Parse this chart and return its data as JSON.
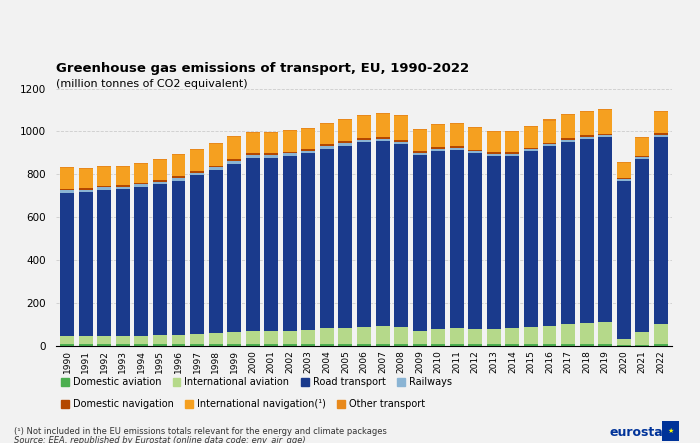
{
  "years": [
    1990,
    1991,
    1992,
    1993,
    1994,
    1995,
    1996,
    1997,
    1998,
    1999,
    2000,
    2001,
    2002,
    2003,
    2004,
    2005,
    2006,
    2007,
    2008,
    2009,
    2010,
    2011,
    2012,
    2013,
    2014,
    2015,
    2016,
    2017,
    2018,
    2019,
    2020,
    2021,
    2022
  ],
  "domestic_aviation": [
    7,
    6,
    6,
    6,
    6,
    6,
    6,
    6,
    7,
    7,
    7,
    7,
    7,
    7,
    7,
    7,
    7,
    7,
    7,
    6,
    6,
    6,
    5,
    5,
    5,
    5,
    5,
    5,
    5,
    5,
    2,
    3,
    5
  ],
  "international_aviation": [
    36,
    37,
    37,
    37,
    40,
    42,
    44,
    47,
    51,
    56,
    62,
    60,
    62,
    66,
    73,
    76,
    80,
    83,
    81,
    63,
    72,
    77,
    74,
    72,
    75,
    82,
    88,
    95,
    100,
    107,
    27,
    60,
    95
  ],
  "road_transport": [
    668,
    672,
    683,
    686,
    695,
    705,
    720,
    742,
    762,
    787,
    808,
    810,
    817,
    824,
    840,
    851,
    862,
    864,
    852,
    821,
    830,
    831,
    819,
    809,
    806,
    821,
    837,
    851,
    861,
    862,
    741,
    810,
    875
  ],
  "railways": [
    14,
    13,
    13,
    12,
    12,
    12,
    12,
    12,
    12,
    12,
    12,
    12,
    11,
    11,
    11,
    11,
    11,
    11,
    11,
    10,
    10,
    10,
    9,
    9,
    9,
    9,
    9,
    9,
    9,
    9,
    7,
    8,
    9
  ],
  "domestic_navigation": [
    8,
    8,
    8,
    8,
    8,
    8,
    8,
    8,
    8,
    8,
    8,
    8,
    8,
    8,
    8,
    8,
    8,
    8,
    8,
    7,
    7,
    7,
    7,
    7,
    7,
    7,
    7,
    7,
    7,
    7,
    6,
    6,
    7
  ],
  "international_navigation": [
    95,
    90,
    87,
    85,
    87,
    95,
    98,
    100,
    100,
    102,
    95,
    95,
    95,
    95,
    95,
    100,
    105,
    110,
    112,
    100,
    105,
    103,
    100,
    97,
    95,
    98,
    105,
    108,
    110,
    108,
    70,
    80,
    100
  ],
  "other_transport": [
    5,
    5,
    5,
    5,
    5,
    5,
    5,
    5,
    5,
    5,
    5,
    5,
    5,
    5,
    5,
    5,
    5,
    5,
    5,
    5,
    5,
    5,
    5,
    5,
    5,
    5,
    5,
    5,
    5,
    5,
    4,
    5,
    5
  ],
  "colors": {
    "domestic_aviation": "#4caf50",
    "international_aviation": "#b5d98a",
    "road_transport": "#1a3a8c",
    "railways": "#8ab4d4",
    "domestic_navigation": "#b34700",
    "international_navigation": "#f5a020",
    "other_transport": "#e8891c"
  },
  "legend_labels": {
    "domestic_aviation": "Domestic aviation",
    "international_aviation": "International aviation",
    "road_transport": "Road transport",
    "railways": "Railways",
    "domestic_navigation": "Domestic navigation",
    "international_navigation": "International navigation(¹)",
    "other_transport": "Other transport"
  },
  "title": "Greenhouse gas emissions of transport, EU, 1990-2022",
  "subtitle": "(million tonnes of CO2 equivalent)",
  "ylim": [
    0,
    1200
  ],
  "yticks": [
    0,
    200,
    400,
    600,
    800,
    1000,
    1200
  ],
  "footnote": "(¹) Not included in the EU emissions totals relevant for the energy and climate packages",
  "source": "Source: EEA, republished by Eurostat (online data code: env_air_gge)",
  "bg_color": "#f2f2f2"
}
